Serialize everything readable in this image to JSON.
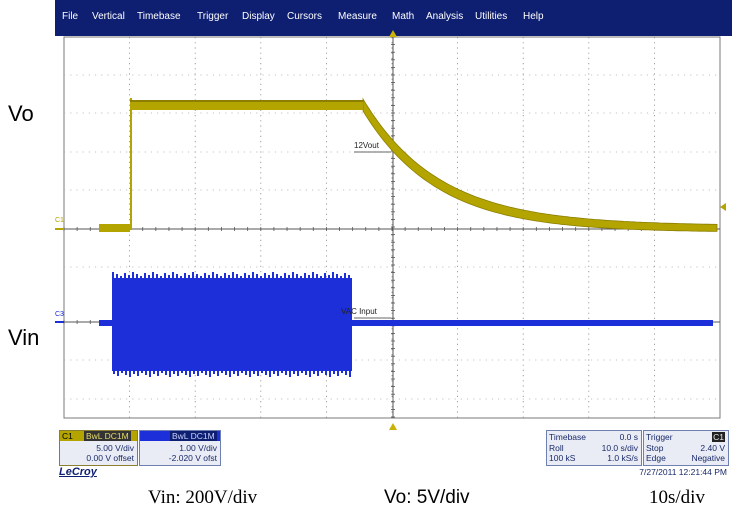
{
  "menu": [
    "File",
    "Vertical",
    "Timebase",
    "Trigger",
    "Display",
    "Cursors",
    "Measure",
    "Math",
    "Analysis",
    "Utilities",
    "Help"
  ],
  "labels": {
    "vo": "Vo",
    "vin": "Vin"
  },
  "captions": {
    "vin_scale": "Vin: 200V/div",
    "vo_scale": "Vo: 5V/div",
    "time_scale": "10s/div"
  },
  "markers": {
    "c1": "C1",
    "c3": "C3"
  },
  "annotations": {
    "ch1": "12Vout",
    "ch3": "VAC Input"
  },
  "colors": {
    "menubar": "#0e1f72",
    "c1_trace": "#b4a400",
    "c3_trace": "#1c2fd8",
    "grid": "#8a8a8a"
  },
  "c1": {
    "name": "C1",
    "coupling": "BwL DC1M",
    "vdiv": "5.00 V/div",
    "offset": "0.00 V offset"
  },
  "c3": {
    "coupling": "BwL DC1M",
    "vdiv": "1.00 V/div",
    "offset": "-2.020 V ofst"
  },
  "timebase": {
    "title": "Timebase",
    "pos": "0.0 s",
    "mode": "Roll",
    "tdiv": "10.0 s/div",
    "samples": "100 kS",
    "rate": "1.0 kS/s"
  },
  "trigger": {
    "title": "Trigger",
    "src": "C1",
    "mode": "Stop",
    "level": "2.40 V",
    "type": "Edge",
    "slope": "Negative"
  },
  "timestamp": "7/27/2011 12:21:44 PM",
  "brand": "LeCroy"
}
